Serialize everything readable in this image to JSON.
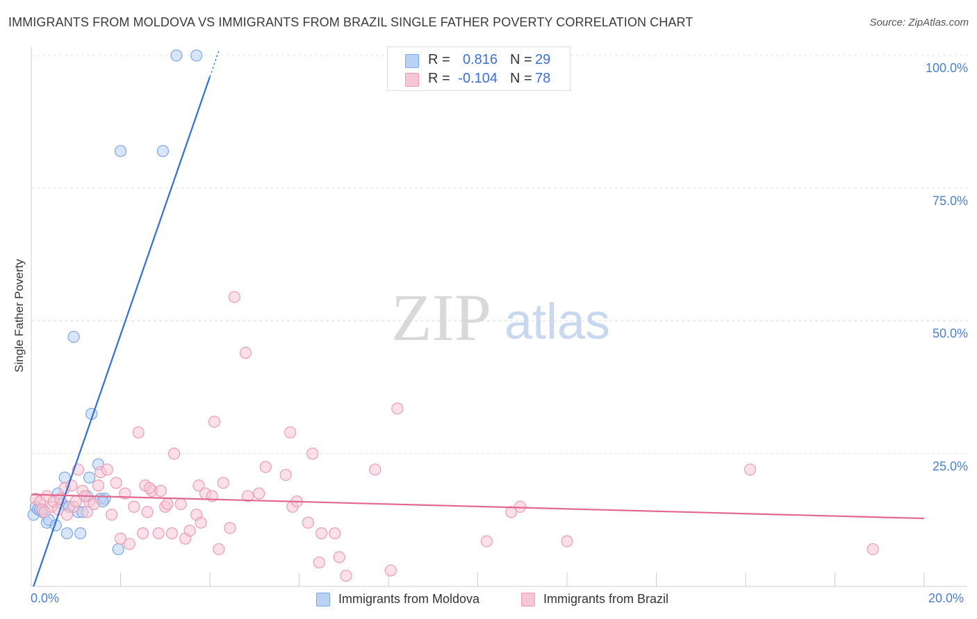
{
  "header": {
    "title": "IMMIGRANTS FROM MOLDOVA VS IMMIGRANTS FROM BRAZIL SINGLE FATHER POVERTY CORRELATION CHART",
    "source": "Source: ZipAtlas.com"
  },
  "watermark": {
    "zip": "ZIP",
    "atlas": "atlas"
  },
  "stats": [
    {
      "r_label": "R =",
      "r_value": "0.816",
      "n_label": "N =",
      "n_value": "29"
    },
    {
      "r_label": "R =",
      "r_value": "-0.104",
      "n_label": "N =",
      "n_value": "78"
    }
  ],
  "chart_data": {
    "type": "scatter",
    "title": "IMMIGRANTS FROM MOLDOVA VS IMMIGRANTS FROM BRAZIL SINGLE FATHER POVERTY CORRELATION CHART",
    "xlabel": "",
    "ylabel": "Single Father Poverty",
    "xlim": [
      0,
      20
    ],
    "ylim": [
      0,
      100
    ],
    "x_tick_labels": [
      "0.0%",
      "20.0%"
    ],
    "y_ticks": [
      25,
      50,
      75,
      100
    ],
    "y_tick_labels": [
      "25.0%",
      "50.0%",
      "75.0%",
      "100.0%"
    ],
    "grid": true,
    "legend": "bottom-center",
    "series": [
      {
        "name": "Immigrants from Moldova",
        "color": "#7aa7e8",
        "fill": "#b9d1f4",
        "trend": {
          "x": [
            0.05,
            4.0
          ],
          "y": [
            0.0,
            96.0
          ],
          "color": "#2f6fd0"
        },
        "points": [
          [
            0.05,
            13.5
          ],
          [
            0.1,
            15.0
          ],
          [
            0.15,
            14.5
          ],
          [
            0.25,
            14.0
          ],
          [
            0.35,
            12.0
          ],
          [
            0.4,
            12.5
          ],
          [
            0.55,
            11.5
          ],
          [
            0.6,
            17.5
          ],
          [
            0.7,
            15.5
          ],
          [
            0.75,
            20.5
          ],
          [
            0.8,
            10.0
          ],
          [
            0.85,
            15.0
          ],
          [
            0.95,
            47.0
          ],
          [
            1.05,
            14.0
          ],
          [
            1.1,
            10.0
          ],
          [
            1.15,
            14.0
          ],
          [
            1.25,
            17.0
          ],
          [
            1.35,
            32.5
          ],
          [
            1.3,
            20.5
          ],
          [
            1.5,
            23.0
          ],
          [
            1.55,
            16.5
          ],
          [
            1.65,
            16.5
          ],
          [
            1.95,
            7.0
          ],
          [
            2.0,
            82.0
          ],
          [
            2.95,
            82.0
          ],
          [
            3.25,
            100.0
          ],
          [
            3.7,
            100.0
          ],
          [
            0.2,
            14.5
          ],
          [
            1.6,
            16.0
          ]
        ]
      },
      {
        "name": "Immigrants from Brazil",
        "color": "#ee9ab4",
        "fill": "#f7c6d6",
        "trend": {
          "x": [
            0.0,
            20.0
          ],
          "y": [
            17.3,
            12.8
          ],
          "color": "#e2678f"
        },
        "points": [
          [
            0.1,
            16.5
          ],
          [
            0.2,
            16.0
          ],
          [
            0.25,
            14.5
          ],
          [
            0.35,
            17.0
          ],
          [
            0.45,
            15.0
          ],
          [
            0.5,
            16.0
          ],
          [
            0.6,
            14.5
          ],
          [
            0.65,
            16.5
          ],
          [
            0.75,
            18.5
          ],
          [
            0.8,
            13.5
          ],
          [
            0.9,
            19.0
          ],
          [
            0.95,
            15.0
          ],
          [
            1.0,
            16.0
          ],
          [
            1.05,
            22.0
          ],
          [
            1.15,
            18.0
          ],
          [
            1.25,
            14.0
          ],
          [
            1.3,
            16.0
          ],
          [
            1.4,
            15.5
          ],
          [
            1.5,
            19.0
          ],
          [
            1.55,
            21.5
          ],
          [
            1.7,
            22.0
          ],
          [
            1.8,
            13.5
          ],
          [
            1.9,
            19.5
          ],
          [
            2.0,
            9.0
          ],
          [
            2.1,
            17.5
          ],
          [
            2.2,
            8.0
          ],
          [
            2.3,
            15.0
          ],
          [
            2.4,
            29.0
          ],
          [
            2.5,
            10.0
          ],
          [
            2.55,
            19.0
          ],
          [
            2.6,
            14.0
          ],
          [
            2.7,
            18.0
          ],
          [
            2.85,
            10.0
          ],
          [
            2.9,
            18.0
          ],
          [
            3.0,
            15.0
          ],
          [
            3.05,
            15.5
          ],
          [
            3.15,
            10.0
          ],
          [
            3.2,
            25.0
          ],
          [
            3.35,
            15.5
          ],
          [
            3.45,
            9.0
          ],
          [
            3.55,
            10.5
          ],
          [
            3.7,
            13.5
          ],
          [
            3.75,
            19.0
          ],
          [
            3.8,
            12.0
          ],
          [
            3.9,
            17.5
          ],
          [
            4.1,
            31.0
          ],
          [
            4.05,
            17.0
          ],
          [
            4.2,
            7.0
          ],
          [
            4.3,
            19.5
          ],
          [
            4.45,
            11.0
          ],
          [
            4.55,
            54.5
          ],
          [
            4.8,
            44.0
          ],
          [
            4.85,
            17.0
          ],
          [
            5.1,
            17.5
          ],
          [
            5.25,
            22.5
          ],
          [
            5.7,
            21.0
          ],
          [
            5.8,
            29.0
          ],
          [
            5.85,
            15.0
          ],
          [
            5.95,
            16.0
          ],
          [
            6.2,
            12.0
          ],
          [
            6.3,
            25.0
          ],
          [
            6.45,
            4.5
          ],
          [
            6.5,
            10.0
          ],
          [
            6.8,
            10.0
          ],
          [
            6.9,
            5.5
          ],
          [
            7.05,
            2.0
          ],
          [
            7.7,
            22.0
          ],
          [
            8.05,
            3.0
          ],
          [
            8.2,
            33.5
          ],
          [
            10.2,
            8.5
          ],
          [
            10.75,
            14.0
          ],
          [
            10.95,
            15.0
          ],
          [
            12.0,
            8.5
          ],
          [
            16.1,
            22.0
          ],
          [
            18.85,
            7.0
          ],
          [
            0.3,
            14.0
          ],
          [
            1.2,
            17.0
          ],
          [
            2.65,
            18.5
          ]
        ]
      }
    ]
  },
  "legend": [
    {
      "label": "Immigrants from Moldova"
    },
    {
      "label": "Immigrants from Brazil"
    }
  ]
}
